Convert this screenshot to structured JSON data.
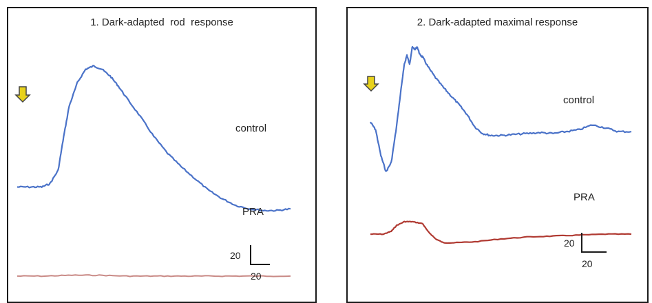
{
  "colors": {
    "control": "#4a72c8",
    "pra_rod": "#c98a86",
    "pra_max": "#b03a32",
    "arrow_fill": "#e8d21c",
    "arrow_stroke": "#444444",
    "frame": "#1a1a1a"
  },
  "chart_data": [
    {
      "type": "line",
      "title": "1. Dark-adapted  rod  response",
      "xlabel": "",
      "ylabel": "",
      "grid": false,
      "stimulus_marker": "yellow-down-arrow",
      "scale_bar": {
        "vertical": "20",
        "horizontal": "20"
      },
      "xlim": [
        0,
        100
      ],
      "ylim": [
        -60,
        85
      ],
      "series": [
        {
          "name": "control",
          "x": [
            0,
            5,
            9,
            12,
            15,
            17,
            19,
            22,
            25,
            28,
            31,
            34,
            37,
            40,
            45,
            50,
            55,
            60,
            65,
            70,
            75,
            80,
            85,
            90,
            95,
            100
          ],
          "y": [
            0,
            0,
            0,
            2,
            10,
            30,
            48,
            62,
            70,
            72,
            70,
            66,
            60,
            53,
            42,
            30,
            20,
            12,
            5,
            -2,
            -7,
            -11,
            -13,
            -14,
            -14,
            -13
          ]
        },
        {
          "name": "PRA",
          "x": [
            0,
            10,
            20,
            30,
            40,
            50,
            60,
            70,
            80,
            90,
            100
          ],
          "y": [
            -53,
            -53,
            -52.5,
            -52.5,
            -53,
            -53,
            -53,
            -53,
            -53,
            -53,
            -53
          ]
        }
      ]
    },
    {
      "type": "line",
      "title": "2. Dark-adapted maximal response",
      "xlabel": "",
      "ylabel": "",
      "grid": false,
      "stimulus_marker": "yellow-down-arrow",
      "scale_bar": {
        "vertical": "20",
        "horizontal": "20"
      },
      "xlim": [
        0,
        100
      ],
      "ylim": [
        -140,
        90
      ],
      "series": [
        {
          "name": "control",
          "x": [
            0,
            2,
            4,
            6,
            8,
            10,
            12,
            13,
            14,
            15,
            16,
            17,
            18,
            19,
            20,
            22,
            25,
            28,
            31,
            34,
            37,
            40,
            43,
            46,
            50,
            55,
            60,
            65,
            70,
            75,
            80,
            85,
            90,
            95,
            100
          ],
          "y": [
            0,
            -8,
            -35,
            -52,
            -42,
            -5,
            40,
            60,
            70,
            60,
            78,
            76,
            78,
            70,
            68,
            58,
            46,
            36,
            27,
            18,
            8,
            -5,
            -12,
            -14,
            -14,
            -13,
            -12,
            -11,
            -12,
            -10,
            -8,
            -3,
            -6,
            -10,
            -10
          ]
        },
        {
          "name": "PRA",
          "x": [
            0,
            5,
            8,
            10,
            13,
            16,
            20,
            22,
            25,
            28,
            32,
            40,
            50,
            60,
            70,
            80,
            90,
            100
          ],
          "y": [
            -117,
            -117,
            -114,
            -108,
            -104,
            -104,
            -106,
            -114,
            -122,
            -126,
            -126,
            -125,
            -122,
            -120,
            -119,
            -118,
            -117,
            -117
          ]
        }
      ]
    }
  ]
}
